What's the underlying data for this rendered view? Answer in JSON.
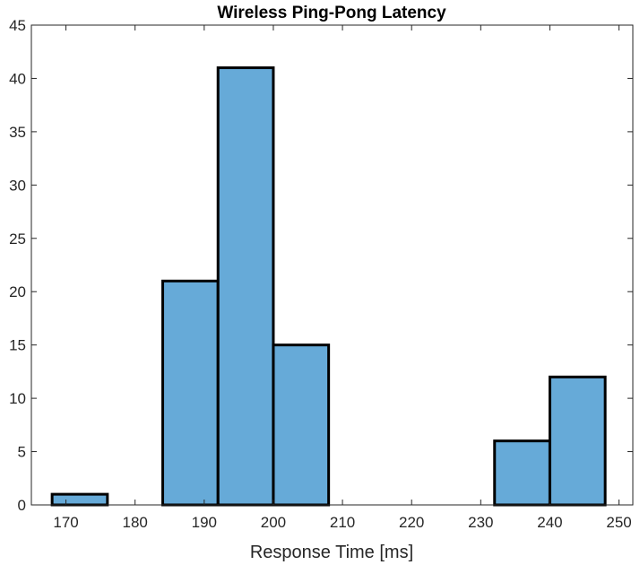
{
  "chart_data": {
    "type": "bar",
    "title": "Wireless Ping-Pong Latency",
    "xlabel": "Response Time [ms]",
    "ylabel": "",
    "bin_edges": [
      168,
      176,
      184,
      192,
      200,
      208,
      216,
      224,
      232,
      240,
      248
    ],
    "values": [
      1,
      0,
      21,
      41,
      15,
      0,
      0,
      0,
      6,
      12
    ],
    "xlim": [
      165,
      252
    ],
    "ylim": [
      0,
      45
    ],
    "x_ticks": [
      170,
      180,
      190,
      200,
      210,
      220,
      230,
      240,
      250
    ],
    "y_ticks": [
      0,
      5,
      10,
      15,
      20,
      25,
      30,
      35,
      40,
      45
    ],
    "bar_color": "#66aad8",
    "bar_edge_color": "#000000",
    "grid": false,
    "legend": "none"
  }
}
